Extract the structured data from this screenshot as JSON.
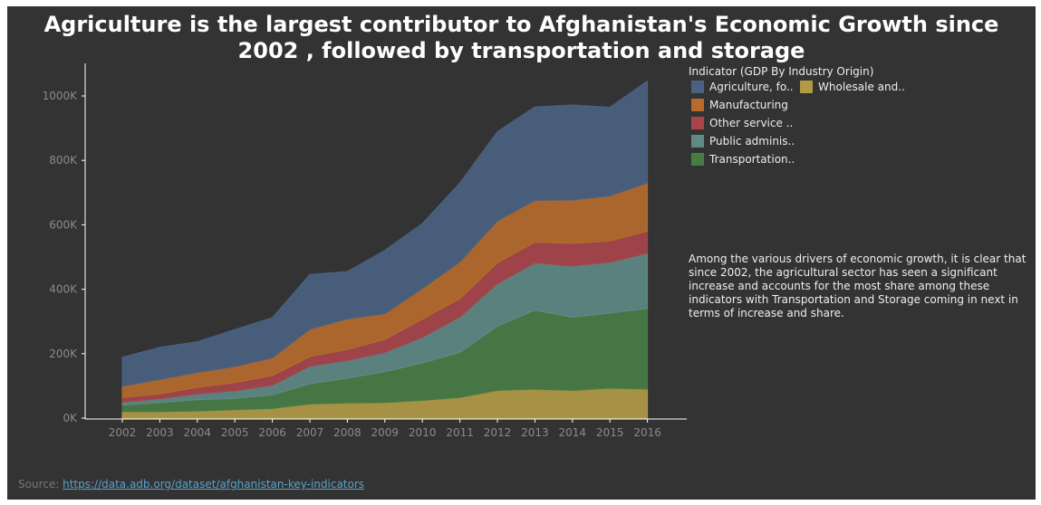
{
  "title": {
    "line1": "Agriculture is the largest contributor to Afghanistan's Economic Growth since",
    "line2": "2002 , followed by transportation and storage"
  },
  "legend": {
    "title": "Indicator (GDP By Industry Origin)",
    "items": [
      {
        "label": "Agriculture, fo..",
        "color": "#4a6282"
      },
      {
        "label": "Wholesale and..",
        "color": "#b29b47"
      },
      {
        "label": "Manufacturing",
        "color": "#b76b2c"
      },
      {
        "label": "Other service ..",
        "color": "#a8454b"
      },
      {
        "label": "Public adminis..",
        "color": "#5f8a86"
      },
      {
        "label": "Transportation..",
        "color": "#477d45"
      }
    ]
  },
  "annotation": "Among the various drivers of economic growth, it is clear that since 2002, the agricultural sector has seen a significant increase and accounts for the most share among these indicators with Transportation and Storage coming in next in terms of increase and share.",
  "source": {
    "label": "Source:",
    "link": "https://data.adb.org/dataset/afghanistan-key-indicators"
  },
  "chart_data": {
    "type": "area",
    "stacked": true,
    "x": [
      "2002",
      "2003",
      "2004",
      "2005",
      "2006",
      "2007",
      "2008",
      "2009",
      "2010",
      "2011",
      "2012",
      "2013",
      "2014",
      "2015",
      "2016"
    ],
    "ylim": [
      0,
      1000000
    ],
    "y_ticks": [
      0,
      200000,
      400000,
      600000,
      800000,
      1000000
    ],
    "y_tick_labels": [
      "0K",
      "200K",
      "400K",
      "600K",
      "800K",
      "1000K"
    ],
    "grid": false,
    "legend_position": "top-right",
    "series": [
      {
        "name": "Wholesale and..",
        "color": "#b29b47",
        "values": [
          20000,
          20000,
          22000,
          26000,
          30000,
          44000,
          47000,
          48000,
          55000,
          64000,
          86000,
          90000,
          86000,
          93000,
          90000
        ]
      },
      {
        "name": "Transportation..",
        "color": "#477d45",
        "values": [
          20000,
          28000,
          35000,
          35000,
          42000,
          62000,
          77000,
          96000,
          116000,
          140000,
          199000,
          245000,
          227000,
          233000,
          250000
        ]
      },
      {
        "name": "Public adminis..",
        "color": "#5f8a86",
        "values": [
          10000,
          12000,
          18000,
          24000,
          30000,
          55000,
          55000,
          60000,
          80000,
          110000,
          132000,
          147000,
          159000,
          158000,
          172000
        ]
      },
      {
        "name": "Other service ..",
        "color": "#a8454b",
        "values": [
          14000,
          15000,
          20000,
          25000,
          30000,
          30000,
          34000,
          40000,
          56000,
          56000,
          65000,
          64000,
          70000,
          66000,
          68000
        ]
      },
      {
        "name": "Manufacturing",
        "color": "#b76b2c",
        "values": [
          35000,
          45000,
          47000,
          50000,
          55000,
          85000,
          95000,
          80000,
          95000,
          115000,
          130000,
          130000,
          135000,
          140000,
          150000
        ]
      },
      {
        "name": "Agriculture, fo..",
        "color": "#4a6282",
        "values": [
          90000,
          100000,
          95000,
          115000,
          125000,
          170000,
          147000,
          197000,
          202000,
          245000,
          277000,
          290000,
          295000,
          275000,
          316000
        ]
      }
    ]
  }
}
